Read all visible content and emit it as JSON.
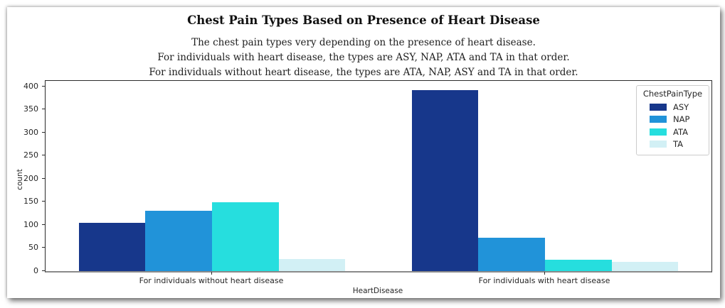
{
  "figure": {
    "title": "Chest Pain Types Based on Presence of Heart Disease",
    "subtitle_lines": [
      "The chest pain types very depending on the presence of heart disease.",
      "For individuals with heart disease, the types are ASY, NAP, ATA and TA in that order.",
      "For individuals without heart disease, the types are ATA, NAP, ASY and TA in that order."
    ]
  },
  "chart_data": {
    "type": "bar",
    "title": "Chest Pain Types Based on Presence of Heart Disease",
    "categories": [
      "For individuals without heart disease",
      "For individuals with heart disease"
    ],
    "series": [
      {
        "name": "ASY",
        "color": "#17378b",
        "values": [
          104,
          392
        ]
      },
      {
        "name": "NAP",
        "color": "#2193d9",
        "values": [
          131,
          72
        ]
      },
      {
        "name": "ATA",
        "color": "#26dede",
        "values": [
          149,
          24
        ]
      },
      {
        "name": "TA",
        "color": "#d2f0f5",
        "values": [
          26,
          20
        ]
      }
    ],
    "xlabel": "HeartDisease",
    "ylabel": "count",
    "ylim": [
      0,
      412
    ],
    "yticks": [
      0,
      50,
      100,
      150,
      200,
      250,
      300,
      350,
      400
    ],
    "legend_title": "ChestPainType",
    "legend_position": "upper right",
    "grid": false,
    "bar_group_width_fraction": 0.8
  }
}
